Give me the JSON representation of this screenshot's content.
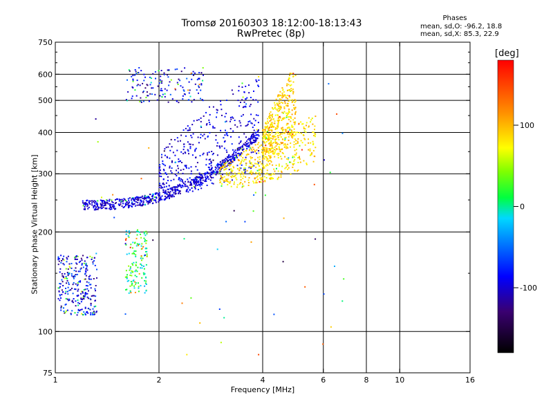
{
  "chart_data": {
    "type": "scatter",
    "title": "Tromsø 20160303 18:12:00-18:13:43",
    "subtitle": "RwPretec (8p)",
    "xlabel": "Frequency [MHz]",
    "ylabel": "Stationary phase Virtual Height [km]",
    "x_scale": "log",
    "y_scale": "log",
    "xlim": [
      1,
      16
    ],
    "ylim": [
      75,
      750
    ],
    "x_ticks": [
      1,
      2,
      4,
      6,
      8,
      10,
      16
    ],
    "y_ticks": [
      75,
      100,
      200,
      300,
      400,
      500,
      600,
      750
    ],
    "x_grid": [
      2,
      4,
      6,
      8,
      10
    ],
    "y_grid": [
      100,
      200,
      300,
      400,
      500,
      600
    ],
    "grid": true,
    "colorbar": {
      "label": "[deg]",
      "range": [
        -180,
        180
      ],
      "ticks": [
        -100,
        0,
        100
      ],
      "colors": [
        "#000000",
        "#3a0070",
        "#0000ff",
        "#00d8ff",
        "#00ff00",
        "#ffff00",
        "#ff8000",
        "#ff0000"
      ]
    },
    "legend_title": "Phases",
    "stats": [
      "mean, sd,O: -96.2, 18.8",
      "mean, sd,X:  85.3, 22.9"
    ],
    "series": [
      {
        "kind": "o_trace_main",
        "x_range": [
          1.2,
          3.9
        ],
        "y_start": 238,
        "y_end": 395,
        "phase": -100
      },
      {
        "kind": "o_trace_upper",
        "x_range": [
          2.0,
          3.9
        ],
        "y_range": [
          260,
          600
        ],
        "phase": -95
      },
      {
        "kind": "o_low_echo",
        "x_range": [
          1.02,
          1.32
        ],
        "y_range": [
          112,
          170
        ],
        "phase": -90
      },
      {
        "kind": "o_mid_echo",
        "x_range": [
          1.6,
          1.85
        ],
        "y_range": [
          130,
          205
        ],
        "phase": 10
      },
      {
        "kind": "o_high_echo",
        "x_range": [
          1.6,
          2.7
        ],
        "y_range": [
          490,
          630
        ],
        "phase": -90
      },
      {
        "kind": "x_trace",
        "x_range": [
          3.0,
          5.7
        ],
        "y_range": [
          270,
          450
        ],
        "phase": 85
      },
      {
        "kind": "x_trace_upper",
        "x_range": [
          4.0,
          5.0
        ],
        "y_range": [
          330,
          640
        ],
        "phase": 90
      }
    ]
  }
}
